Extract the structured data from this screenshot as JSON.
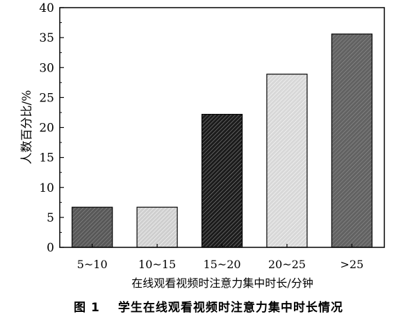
{
  "figure": {
    "number": "图 1",
    "caption": "学生在线观看视频时注意力集中时长情况"
  },
  "chart_data": {
    "type": "bar",
    "categories": [
      "5~10",
      "10~15",
      "15~20",
      "20~25",
      ">25"
    ],
    "values": [
      6.7,
      6.7,
      22.2,
      28.9,
      35.6
    ],
    "xlabel": "在线观看视频时注意力集中时长/分钟",
    "ylabel": "人数百分比/%",
    "ylim": [
      0,
      40
    ],
    "yticks": [
      0,
      5,
      10,
      15,
      20,
      25,
      30,
      35,
      40
    ],
    "grid": false,
    "bar_fills": [
      "#585858",
      "#cfcfcf",
      "#1c1c1c",
      "#d8d8d8",
      "#626262"
    ]
  }
}
